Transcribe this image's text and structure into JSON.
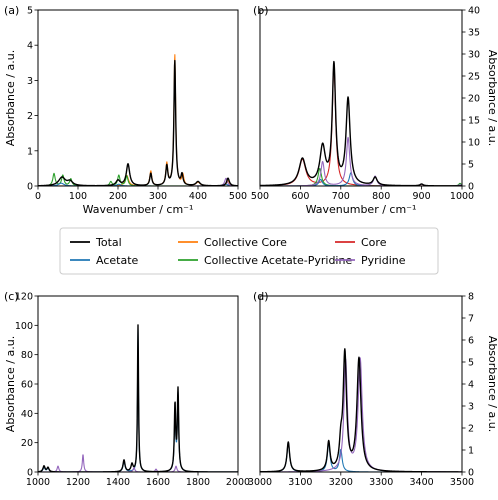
{
  "figure": {
    "legend": {
      "placement": "center, between upper and lower rows",
      "columns": 3,
      "entries": [
        {
          "name": "Total",
          "color": "#000000"
        },
        {
          "name": "Acetate",
          "color": "#1f77b4"
        },
        {
          "name": "Collective Core",
          "color": "#ff7f0e"
        },
        {
          "name": "Collective Acetate-Pyridine",
          "color": "#2ca02c"
        },
        {
          "name": "Core",
          "color": "#d62728"
        },
        {
          "name": "Pyridine",
          "color": "#9467bd"
        }
      ]
    }
  },
  "chart_data": [
    {
      "id": "a",
      "label": "(a)",
      "type": "line",
      "xlabel": "Wavenumber / cm⁻¹",
      "ylabel": "Absorbance / a.u.",
      "ylabel_side": "left",
      "xlim": [
        0,
        500
      ],
      "ylim": [
        0,
        5
      ],
      "xticks": [
        0,
        100,
        200,
        300,
        400,
        500
      ],
      "yticks": [
        0,
        1,
        2,
        3,
        4,
        5
      ],
      "peaks": {
        "Total": [
          [
            60,
            0.24,
            10
          ],
          [
            80,
            0.12,
            8
          ],
          [
            200,
            0.15,
            6
          ],
          [
            225,
            0.62,
            5
          ],
          [
            282,
            0.35,
            3
          ],
          [
            322,
            0.55,
            3
          ],
          [
            342,
            3.55,
            2.6
          ],
          [
            360,
            0.3,
            3
          ],
          [
            400,
            0.12,
            6
          ],
          [
            475,
            0.22,
            4
          ]
        ],
        "Acetate": [
          [
            58,
            0.08,
            8
          ],
          [
            202,
            0.05,
            6
          ],
          [
            470,
            0.05,
            6
          ]
        ],
        "Collective Core": [
          [
            222,
            0.3,
            5
          ],
          [
            282,
            0.42,
            3
          ],
          [
            322,
            0.62,
            3
          ],
          [
            342,
            3.72,
            2.6
          ],
          [
            362,
            0.3,
            3
          ],
          [
            400,
            0.1,
            6
          ],
          [
            475,
            0.15,
            4
          ]
        ],
        "Collective Acetate-Pyridine": [
          [
            40,
            0.35,
            3.5
          ],
          [
            62,
            0.3,
            3.5
          ],
          [
            82,
            0.2,
            3.5
          ],
          [
            182,
            0.12,
            3.5
          ],
          [
            202,
            0.3,
            3.5
          ],
          [
            222,
            0.28,
            3.5
          ]
        ],
        "Core": [],
        "Pyridine": [
          [
            470,
            0.22,
            4
          ]
        ]
      }
    },
    {
      "id": "b",
      "label": "(b)",
      "type": "line",
      "xlabel": "Wavenumber / cm⁻¹",
      "ylabel": "Absorbance / a.u.",
      "ylabel_side": "right",
      "xlim": [
        500,
        1000
      ],
      "ylim": [
        0,
        40
      ],
      "xticks": [
        500,
        600,
        700,
        800,
        900,
        1000
      ],
      "yticks": [
        0,
        5,
        10,
        15,
        20,
        25,
        30,
        35,
        40
      ],
      "peaks": {
        "Total": [
          [
            605,
            6,
            10
          ],
          [
            655,
            8.5,
            8
          ],
          [
            683,
            27,
            5
          ],
          [
            718,
            19.5,
            6
          ],
          [
            785,
            1.8,
            6
          ],
          [
            900,
            0.4,
            5
          ]
        ],
        "Acetate": [
          [
            650,
            1.5,
            5
          ],
          [
            725,
            3,
            5
          ]
        ],
        "Collective Core": [],
        "Collective Acetate-Pyridine": [
          [
            648,
            4,
            5
          ],
          [
            995,
            0.6,
            4
          ]
        ],
        "Core": [
          [
            605,
            6,
            10
          ],
          [
            683,
            27.5,
            5
          ]
        ],
        "Pyridine": [
          [
            655,
            5.5,
            5
          ],
          [
            718,
            11,
            5
          ],
          [
            785,
            2.2,
            5
          ],
          [
            900,
            0.4,
            5
          ],
          [
            995,
            0.3,
            4
          ]
        ]
      }
    },
    {
      "id": "c",
      "label": "(c)",
      "type": "line",
      "xlabel": "",
      "ylabel": "Absorbance / a.u.",
      "ylabel_side": "left",
      "xlim": [
        1000,
        2000
      ],
      "ylim": [
        0,
        120
      ],
      "xticks": [
        1000,
        1200,
        1400,
        1600,
        1800,
        2000
      ],
      "yticks": [
        0,
        20,
        40,
        60,
        80,
        100,
        120
      ],
      "peaks": {
        "Total": [
          [
            1030,
            4,
            6
          ],
          [
            1050,
            3,
            6
          ],
          [
            1430,
            8,
            6
          ],
          [
            1470,
            5,
            6
          ],
          [
            1500,
            100,
            3
          ],
          [
            1685,
            45,
            4
          ],
          [
            1700,
            55,
            4
          ]
        ],
        "Acetate": [
          [
            1030,
            3,
            6
          ],
          [
            1050,
            2.5,
            6
          ],
          [
            1430,
            7,
            6
          ],
          [
            1500,
            97,
            3
          ],
          [
            1685,
            40,
            4
          ],
          [
            1700,
            52,
            4
          ]
        ],
        "Collective Core": [],
        "Collective Acetate-Pyridine": [],
        "Core": [],
        "Pyridine": [
          [
            1100,
            4,
            5
          ],
          [
            1225,
            12,
            4
          ],
          [
            1480,
            3,
            5
          ],
          [
            1590,
            2,
            5
          ],
          [
            1690,
            4,
            5
          ]
        ]
      }
    },
    {
      "id": "d",
      "label": "(d)",
      "type": "line",
      "xlabel": "",
      "ylabel": "Absorbance / a.u.",
      "ylabel_side": "right",
      "xlim": [
        3000,
        3500
      ],
      "ylim": [
        0,
        8
      ],
      "xticks": [
        3000,
        3100,
        3200,
        3300,
        3400,
        3500
      ],
      "yticks": [
        0,
        1,
        2,
        3,
        4,
        5,
        6,
        7,
        8
      ],
      "peaks": {
        "Total": [
          [
            3070,
            1.35,
            4
          ],
          [
            3170,
            1.3,
            4
          ],
          [
            3200,
            1.0,
            4
          ],
          [
            3210,
            5.3,
            5
          ],
          [
            3245,
            5.1,
            6
          ]
        ],
        "Acetate": [
          [
            3070,
            1.35,
            4
          ],
          [
            3170,
            1.3,
            4
          ],
          [
            3200,
            1.0,
            4
          ]
        ],
        "Collective Core": [],
        "Collective Acetate-Pyridine": [],
        "Core": [],
        "Pyridine": [
          [
            3212,
            5.0,
            5
          ],
          [
            3248,
            5.1,
            6
          ]
        ]
      }
    }
  ]
}
